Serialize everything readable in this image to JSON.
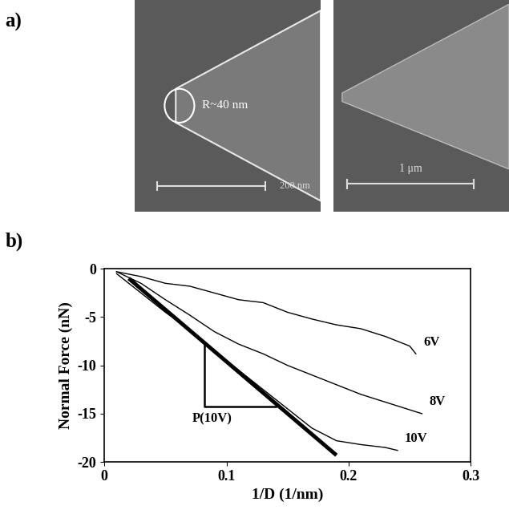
{
  "panel_a": {
    "label": "a)",
    "images": [
      {
        "annotation": "R~40 nm",
        "scale_bar": "200 nm"
      },
      {
        "scale_bar": "1 μm"
      }
    ]
  },
  "chart_data": {
    "panel_label": "b)",
    "type": "line",
    "xlabel": "1/D (1/nm)",
    "ylabel": "Normal Force (nN)",
    "xlim": [
      0,
      0.3
    ],
    "xticks": [
      0,
      0.1,
      0.2,
      0.3
    ],
    "ylim": [
      -20,
      0
    ],
    "yticks": [
      -20,
      -15,
      -10,
      -5,
      0
    ],
    "grid": false,
    "series": [
      {
        "name": "6V",
        "color": "#000000",
        "line_style": "solid",
        "x": [
          0.01,
          0.03,
          0.05,
          0.07,
          0.09,
          0.11,
          0.13,
          0.15,
          0.17,
          0.19,
          0.21,
          0.23,
          0.25,
          0.255
        ],
        "values": [
          -0.3,
          -0.8,
          -1.5,
          -1.8,
          -2.5,
          -3.2,
          -3.5,
          -4.5,
          -5.2,
          -5.8,
          -6.2,
          -7.0,
          -8.0,
          -8.8
        ]
      },
      {
        "name": "8V",
        "color": "#000000",
        "line_style": "solid",
        "x": [
          0.01,
          0.03,
          0.05,
          0.07,
          0.09,
          0.11,
          0.13,
          0.15,
          0.17,
          0.19,
          0.21,
          0.23,
          0.26
        ],
        "values": [
          -0.3,
          -1.5,
          -3.2,
          -4.8,
          -6.5,
          -7.8,
          -8.8,
          -10.0,
          -11.0,
          -12.0,
          -13.0,
          -13.8,
          -15.0
        ]
      },
      {
        "name": "10V",
        "color": "#000000",
        "line_style": "solid",
        "x": [
          0.01,
          0.03,
          0.05,
          0.07,
          0.09,
          0.11,
          0.13,
          0.15,
          0.17,
          0.19,
          0.21,
          0.23,
          0.24
        ],
        "values": [
          -0.5,
          -2.5,
          -4.5,
          -6.3,
          -8.5,
          -10.5,
          -12.5,
          -14.5,
          -16.5,
          -17.8,
          -18.2,
          -18.5,
          -18.8
        ]
      },
      {
        "name": "P(10V)",
        "color": "#000000",
        "line_style": "fit",
        "x": [
          0.02,
          0.19
        ],
        "values": [
          -1.0,
          -19.3
        ]
      }
    ],
    "triangle": {
      "x": [
        0.082,
        0.082,
        0.14
      ],
      "values": [
        -7.6,
        -14.3,
        -14.3
      ]
    }
  }
}
